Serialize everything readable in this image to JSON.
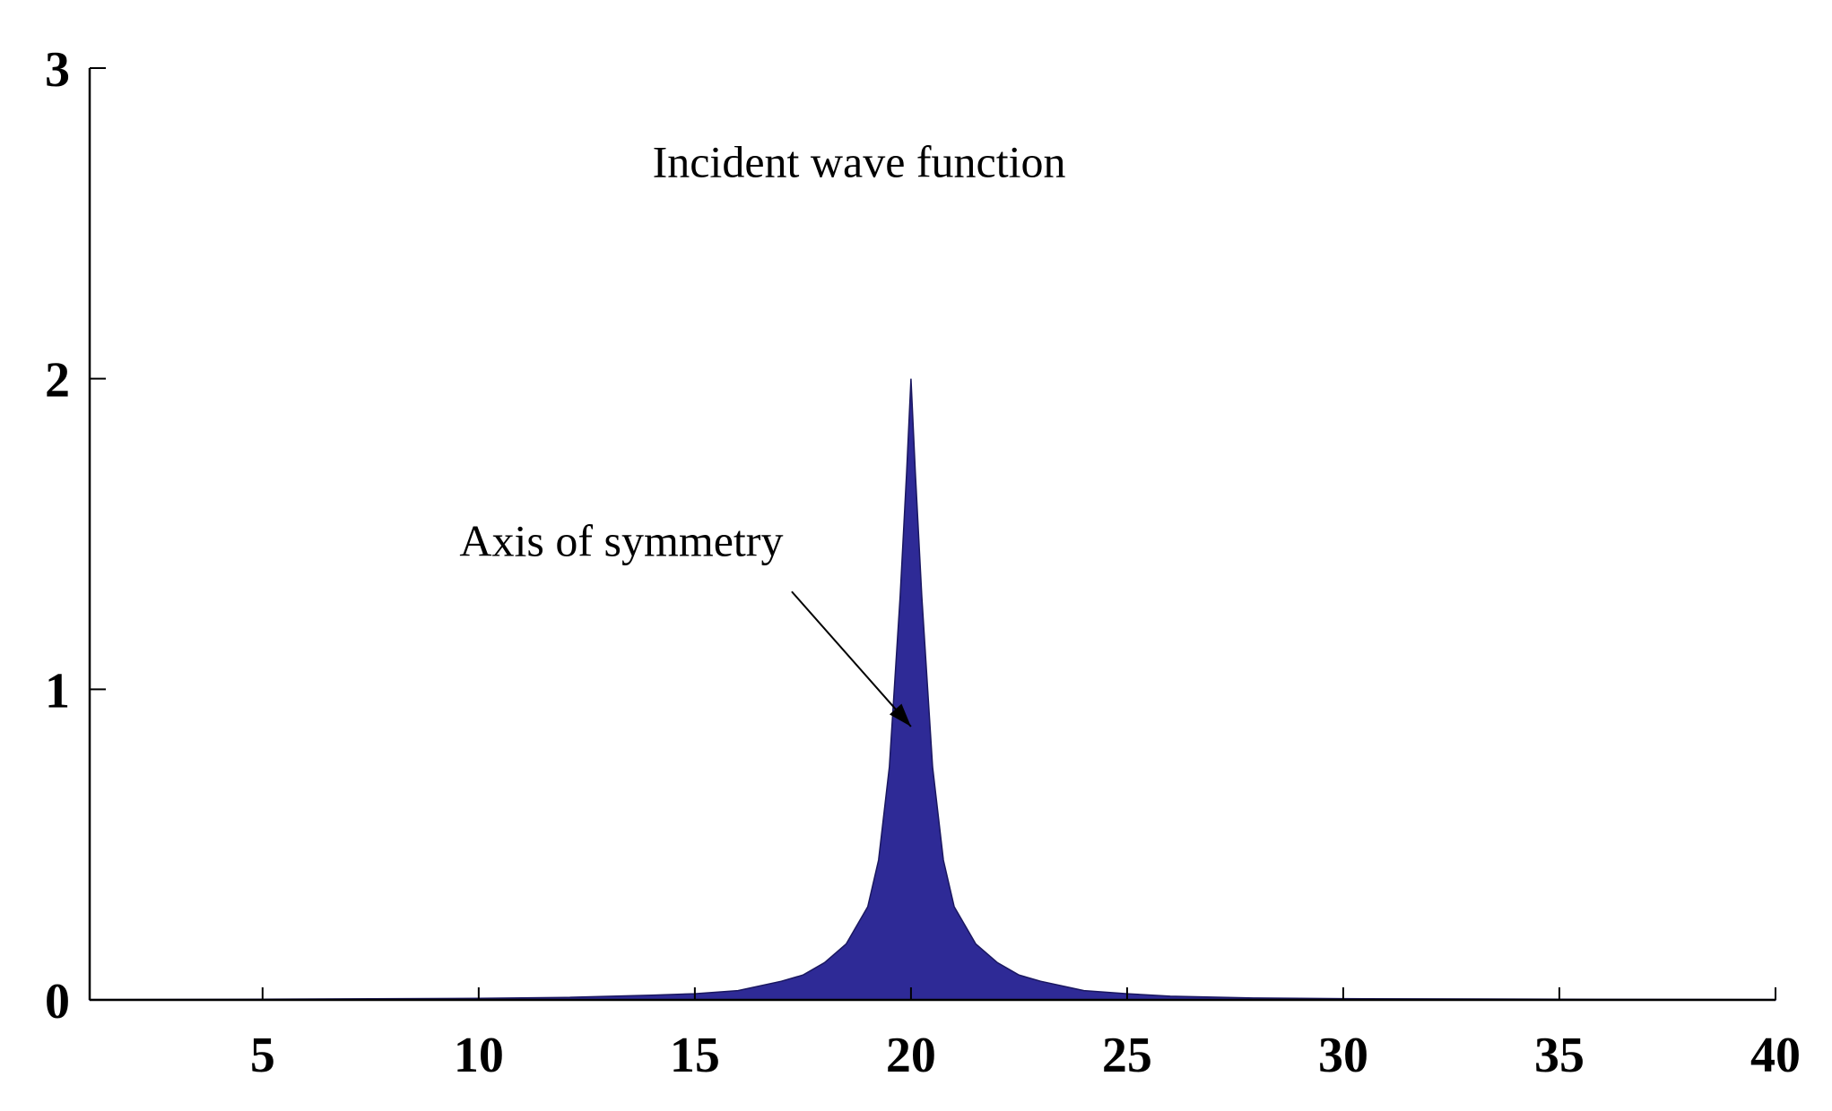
{
  "chart_data": {
    "type": "area",
    "title": "",
    "xlabel": "",
    "ylabel": "",
    "xlim": [
      1,
      40
    ],
    "ylim": [
      0,
      3
    ],
    "xticks": [
      5,
      10,
      15,
      20,
      25,
      30,
      35,
      40
    ],
    "yticks": [
      0,
      1,
      2,
      3
    ],
    "grid": false,
    "fill_color": "#2e2a96",
    "series": [
      {
        "x": [
          1,
          5,
          10,
          12,
          14,
          15,
          16,
          17,
          17.5,
          18,
          18.5,
          19,
          19.25,
          19.5,
          19.75,
          19.9,
          20,
          20.1,
          20.25,
          20.5,
          20.75,
          21,
          21.5,
          22,
          22.5,
          23,
          24,
          25,
          26,
          28,
          30,
          35,
          40
        ],
        "y": [
          0.001,
          0.002,
          0.005,
          0.008,
          0.015,
          0.02,
          0.03,
          0.06,
          0.08,
          0.12,
          0.18,
          0.3,
          0.45,
          0.75,
          1.3,
          1.7,
          2.0,
          1.7,
          1.3,
          0.75,
          0.45,
          0.3,
          0.18,
          0.12,
          0.08,
          0.06,
          0.03,
          0.02,
          0.012,
          0.006,
          0.004,
          0.002,
          0.001
        ]
      }
    ],
    "annotations": [
      {
        "text": "Incident wave function",
        "x": 18.8,
        "y": 2.65
      },
      {
        "text": "Axis of symmetry",
        "x": 13.3,
        "y": 1.43,
        "arrow_to": [
          20,
          0.88
        ]
      }
    ]
  }
}
